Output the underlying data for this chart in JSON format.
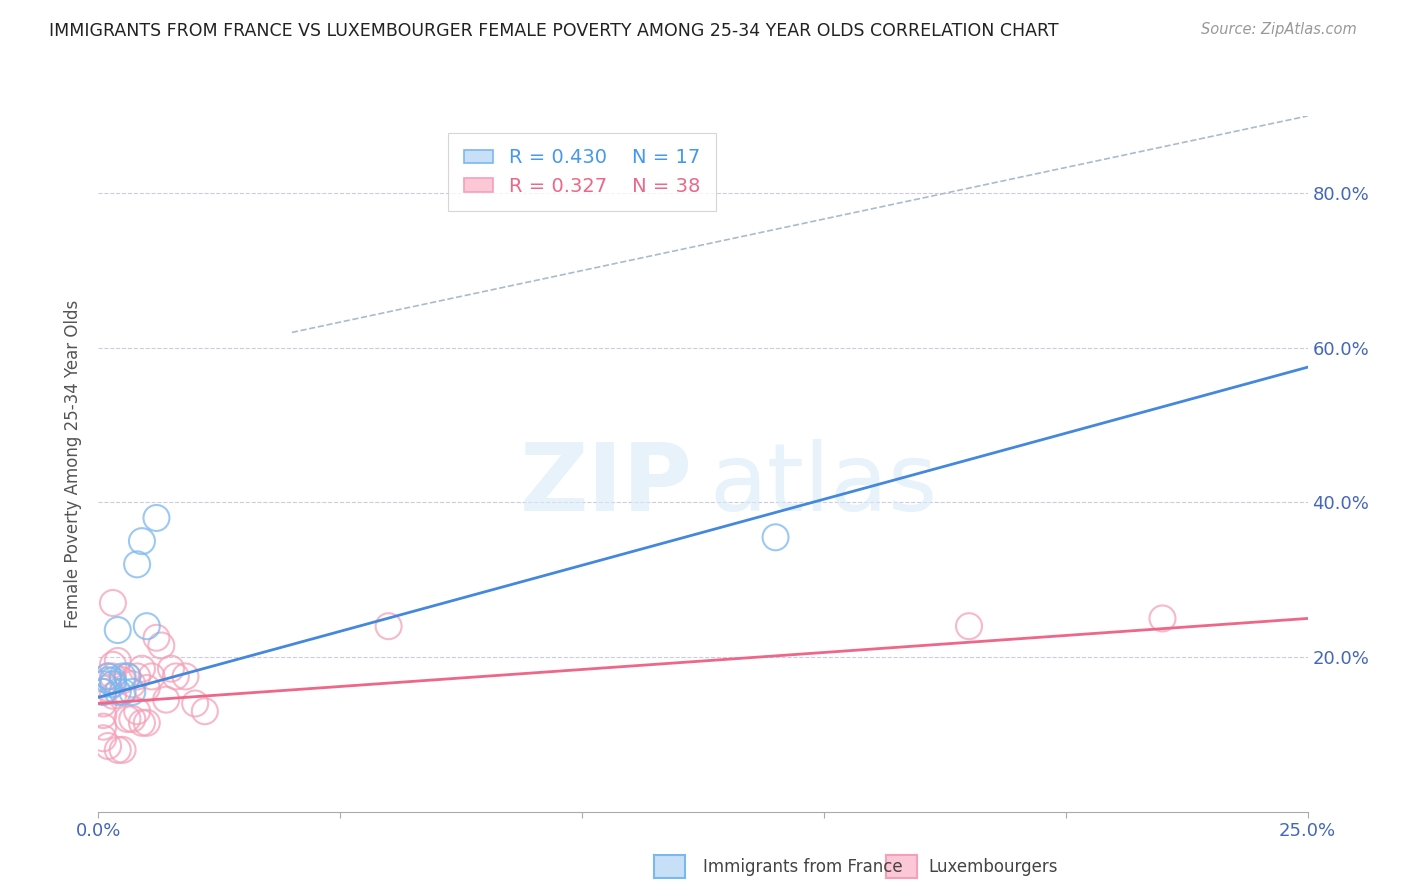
{
  "title": "IMMIGRANTS FROM FRANCE VS LUXEMBOURGER FEMALE POVERTY AMONG 25-34 YEAR OLDS CORRELATION CHART",
  "source": "Source: ZipAtlas.com",
  "ylabel": "Female Poverty Among 25-34 Year Olds",
  "background_color": "#ffffff",
  "legend_blue_r": "0.430",
  "legend_blue_n": "17",
  "legend_pink_r": "0.327",
  "legend_pink_n": "38",
  "legend_label_blue": "Immigrants from France",
  "legend_label_pink": "Luxembourgers",
  "blue_color": "#7ab8f0",
  "pink_color": "#f5a0b8",
  "blue_scatter": {
    "x": [
      0.001,
      0.001,
      0.002,
      0.002,
      0.003,
      0.003,
      0.004,
      0.004,
      0.005,
      0.005,
      0.006,
      0.007,
      0.008,
      0.009,
      0.01,
      0.012,
      0.14
    ],
    "y": [
      0.155,
      0.165,
      0.17,
      0.175,
      0.17,
      0.165,
      0.235,
      0.155,
      0.175,
      0.155,
      0.175,
      0.155,
      0.32,
      0.35,
      0.24,
      0.38,
      0.355
    ]
  },
  "pink_scatter": {
    "x": [
      0.001,
      0.001,
      0.001,
      0.001,
      0.001,
      0.002,
      0.002,
      0.002,
      0.003,
      0.003,
      0.003,
      0.003,
      0.004,
      0.004,
      0.005,
      0.005,
      0.006,
      0.006,
      0.007,
      0.007,
      0.008,
      0.008,
      0.009,
      0.009,
      0.01,
      0.01,
      0.011,
      0.012,
      0.013,
      0.014,
      0.015,
      0.016,
      0.018,
      0.02,
      0.022,
      0.06,
      0.18,
      0.22
    ],
    "y": [
      0.125,
      0.14,
      0.155,
      0.095,
      0.11,
      0.16,
      0.175,
      0.085,
      0.15,
      0.175,
      0.27,
      0.19,
      0.195,
      0.08,
      0.17,
      0.08,
      0.175,
      0.12,
      0.165,
      0.12,
      0.175,
      0.13,
      0.185,
      0.115,
      0.16,
      0.115,
      0.175,
      0.225,
      0.215,
      0.145,
      0.185,
      0.175,
      0.175,
      0.14,
      0.13,
      0.24,
      0.24,
      0.25
    ]
  },
  "blue_trendline": {
    "x": [
      0.0,
      0.25
    ],
    "y": [
      0.148,
      0.575
    ]
  },
  "pink_trendline": {
    "x": [
      0.0,
      0.25
    ],
    "y": [
      0.14,
      0.25
    ]
  },
  "diagonal_dashed": {
    "x": [
      0.04,
      0.25
    ],
    "y": [
      0.62,
      0.9
    ]
  },
  "xlim": [
    0.0,
    0.25
  ],
  "ylim": [
    0.0,
    0.9
  ],
  "yticks_right": [
    0.2,
    0.4,
    0.6,
    0.8
  ],
  "yticklabels_right": [
    "20.0%",
    "40.0%",
    "60.0%",
    "80.0%"
  ],
  "grid_yticks": [
    0.2,
    0.4,
    0.6,
    0.8
  ],
  "xticks": [
    0.0,
    0.05,
    0.1,
    0.15,
    0.2,
    0.25
  ],
  "xticklabels_show": {
    "0.0": "0.0%",
    "0.25": "25.0%"
  }
}
